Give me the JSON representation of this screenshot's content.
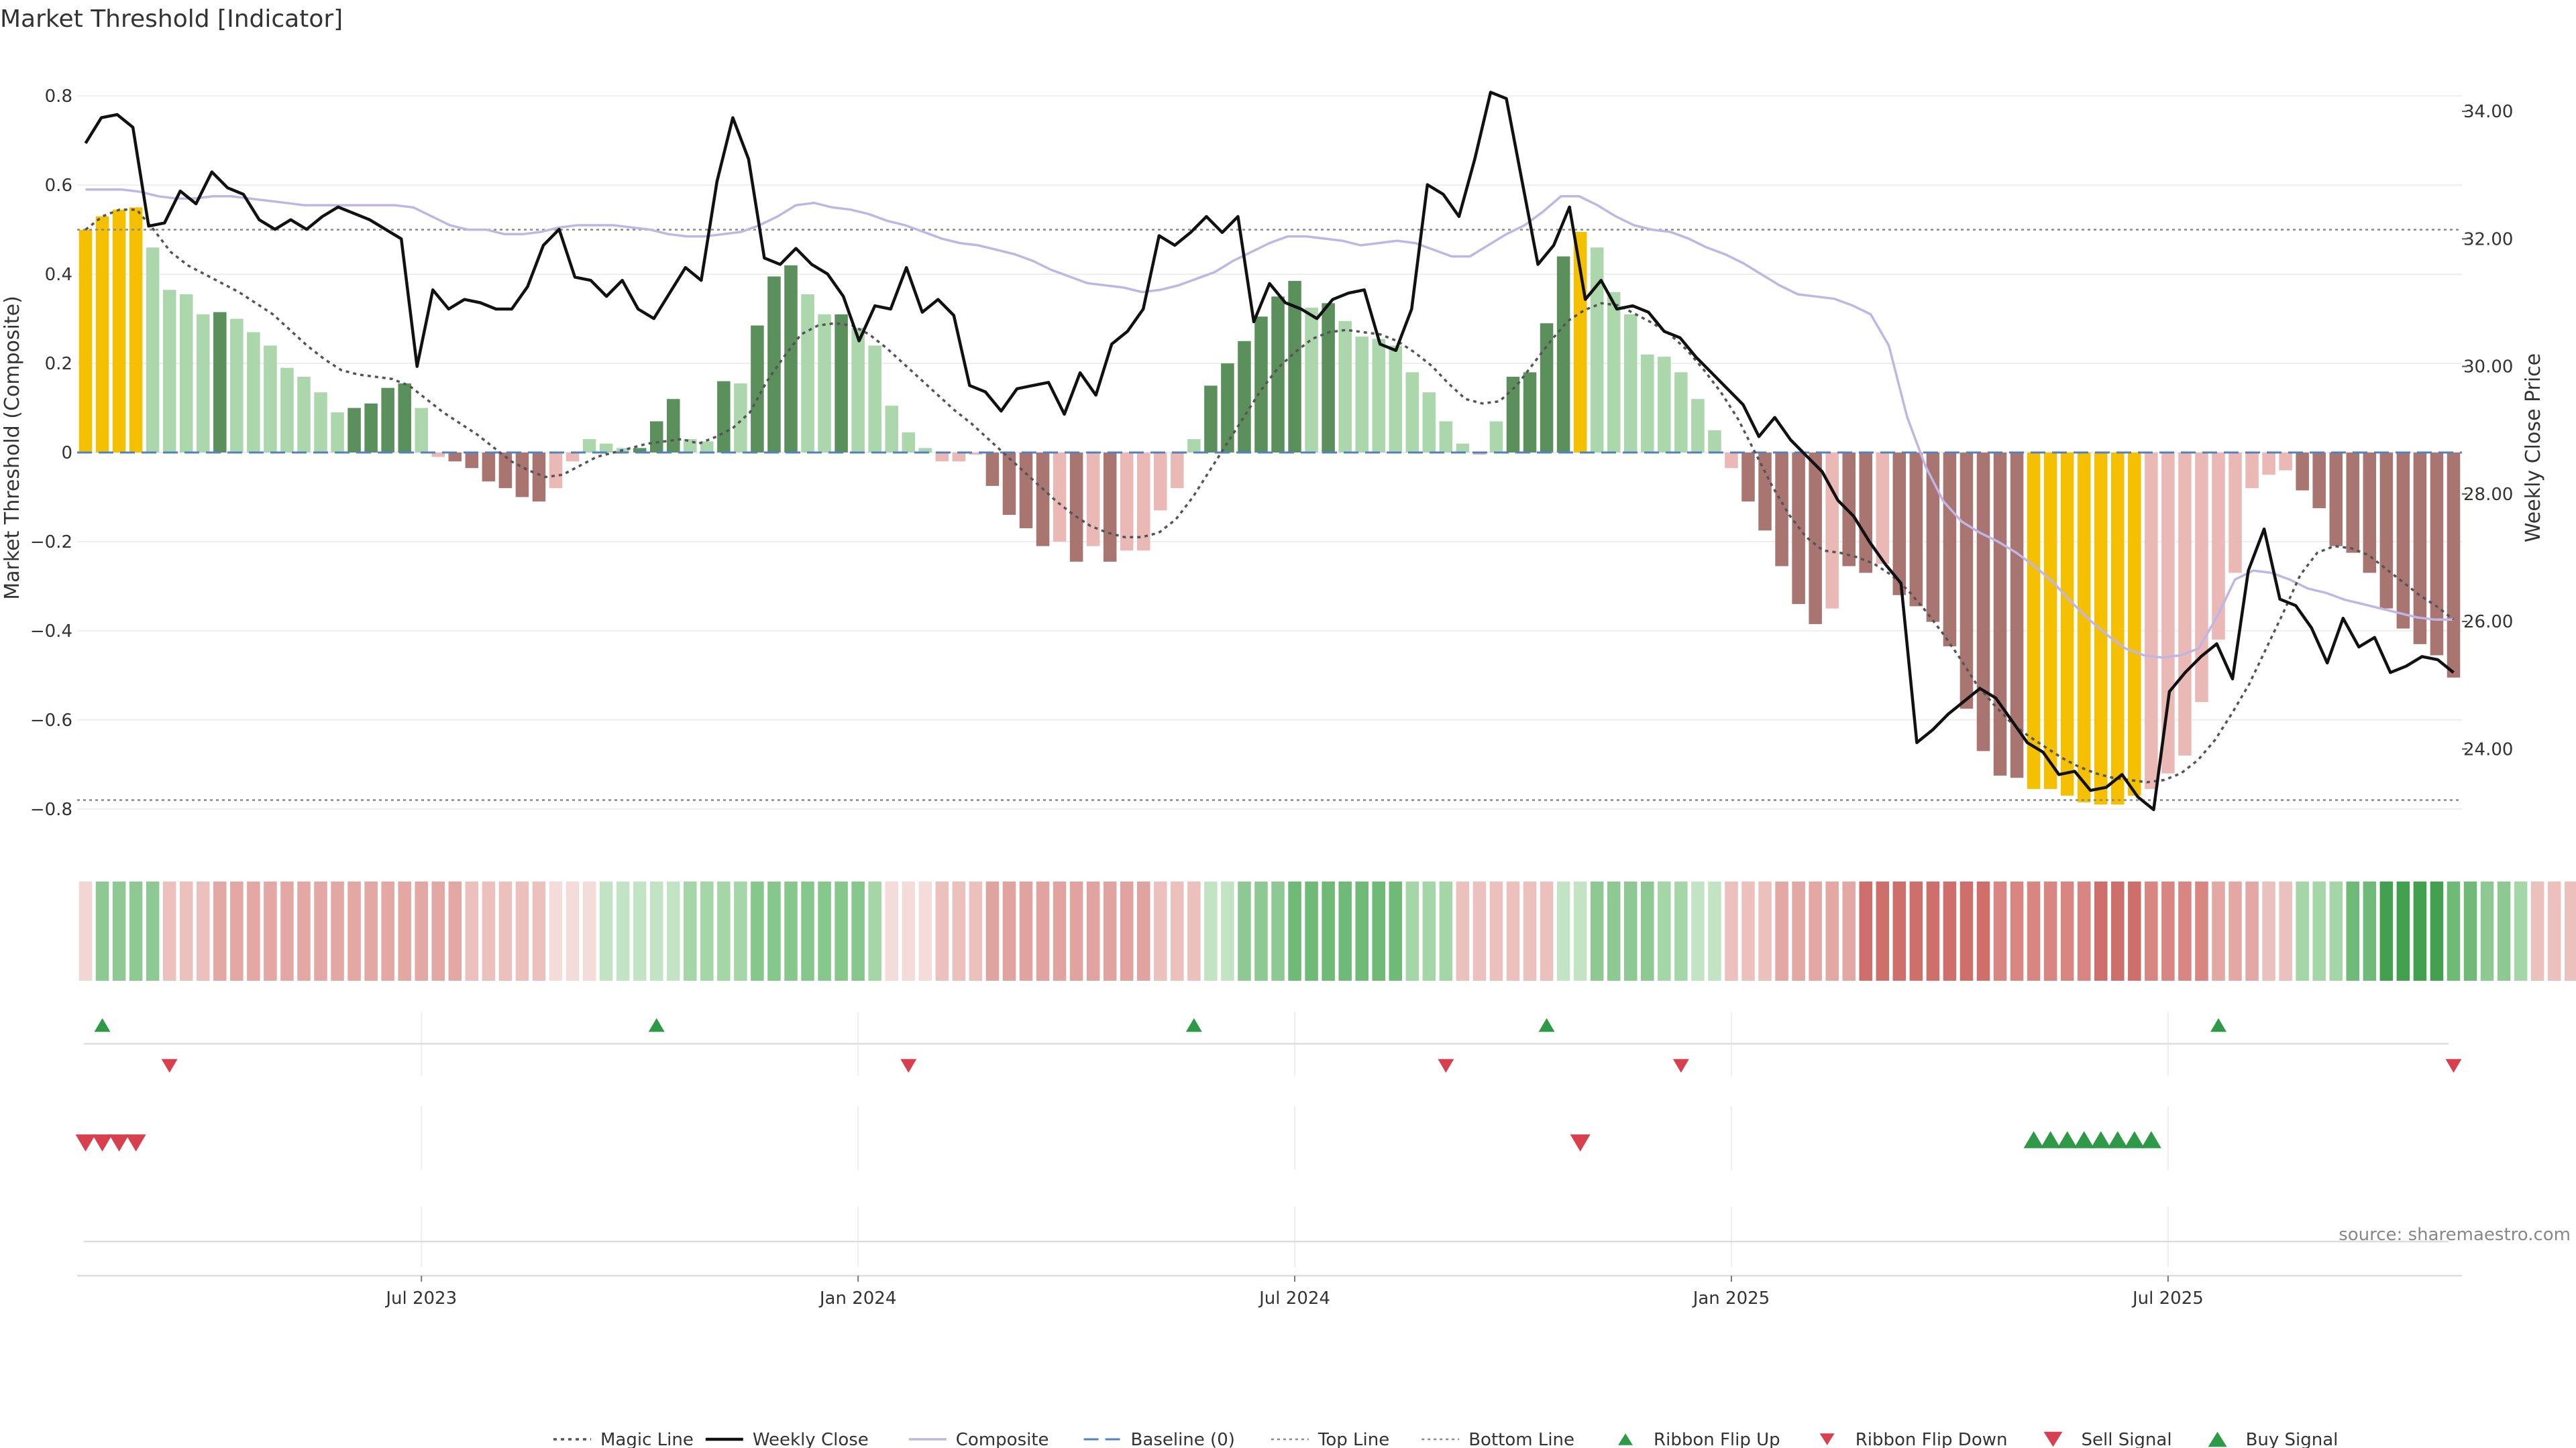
{
  "chart_data": {
    "type": "bar",
    "title": "Market Threshold [Indicator]",
    "ylabel": "Market Threshold (Composite)",
    "y2label": "Weekly Close Price",
    "ylim": [
      -0.88,
      0.88
    ],
    "y2lim": [
      22.5,
      34.8
    ],
    "yticks": [
      0.8,
      0.6,
      0.4,
      0.2,
      0,
      -0.2,
      -0.4,
      -0.6,
      -0.8
    ],
    "yticklabels": [
      "0.8",
      "0.6",
      "0.4",
      "0.2",
      "0",
      "−0.2",
      "−0.4",
      "−0.6",
      "−0.8"
    ],
    "y2ticks": [
      34,
      32,
      30,
      28,
      26,
      24
    ],
    "y2ticklabels": [
      "34.00",
      "32.00",
      "30.00",
      "28.00",
      "26.00",
      "24.00"
    ],
    "xticklabels": [
      "Jul 2023",
      "Jan 2024",
      "Jul 2024",
      "Jan 2025",
      "Jul 2025"
    ],
    "top_line": 0.5,
    "bottom_line": -0.78,
    "grid": true,
    "legend_placement": "bottom-center",
    "colors": {
      "highlight": "#f5c000",
      "pos_strong": "#5b8f5b",
      "pos_weak": "#acd6ac",
      "neg_strong": "#a97571",
      "neg_weak": "#eab9b6",
      "weekly_close": "#111111",
      "composite": "#c0b6e6",
      "magic": "#555555",
      "baseline": "#4f82c3",
      "buy": "#2e9a48",
      "sell": "#d84050"
    },
    "composite_bars": [
      {
        "v": 0.5,
        "c": "h"
      },
      {
        "v": 0.53,
        "c": "h"
      },
      {
        "v": 0.545,
        "c": "h"
      },
      {
        "v": 0.55,
        "c": "h"
      },
      {
        "v": 0.46,
        "c": "w"
      },
      {
        "v": 0.365,
        "c": "w"
      },
      {
        "v": 0.355,
        "c": "w"
      },
      {
        "v": 0.31,
        "c": "w"
      },
      {
        "v": 0.315,
        "c": "s"
      },
      {
        "v": 0.3,
        "c": "w"
      },
      {
        "v": 0.27,
        "c": "w"
      },
      {
        "v": 0.24,
        "c": "w"
      },
      {
        "v": 0.19,
        "c": "w"
      },
      {
        "v": 0.17,
        "c": "w"
      },
      {
        "v": 0.135,
        "c": "w"
      },
      {
        "v": 0.09,
        "c": "w"
      },
      {
        "v": 0.1,
        "c": "s"
      },
      {
        "v": 0.11,
        "c": "s"
      },
      {
        "v": 0.145,
        "c": "s"
      },
      {
        "v": 0.155,
        "c": "s"
      },
      {
        "v": 0.1,
        "c": "w"
      },
      {
        "v": -0.01,
        "c": "nw"
      },
      {
        "v": -0.02,
        "c": "ns"
      },
      {
        "v": -0.035,
        "c": "ns"
      },
      {
        "v": -0.065,
        "c": "ns"
      },
      {
        "v": -0.08,
        "c": "ns"
      },
      {
        "v": -0.1,
        "c": "ns"
      },
      {
        "v": -0.11,
        "c": "ns"
      },
      {
        "v": -0.08,
        "c": "nw"
      },
      {
        "v": -0.02,
        "c": "nw"
      },
      {
        "v": 0.03,
        "c": "w"
      },
      {
        "v": 0.02,
        "c": "w"
      },
      {
        "v": 0.01,
        "c": "w"
      },
      {
        "v": 0.01,
        "c": "s"
      },
      {
        "v": 0.07,
        "c": "s"
      },
      {
        "v": 0.12,
        "c": "s"
      },
      {
        "v": 0.03,
        "c": "w"
      },
      {
        "v": 0.025,
        "c": "w"
      },
      {
        "v": 0.16,
        "c": "s"
      },
      {
        "v": 0.155,
        "c": "w"
      },
      {
        "v": 0.285,
        "c": "s"
      },
      {
        "v": 0.395,
        "c": "s"
      },
      {
        "v": 0.42,
        "c": "s"
      },
      {
        "v": 0.355,
        "c": "w"
      },
      {
        "v": 0.31,
        "c": "w"
      },
      {
        "v": 0.31,
        "c": "s"
      },
      {
        "v": 0.28,
        "c": "w"
      },
      {
        "v": 0.24,
        "c": "w"
      },
      {
        "v": 0.105,
        "c": "w"
      },
      {
        "v": 0.045,
        "c": "w"
      },
      {
        "v": 0.01,
        "c": "w"
      },
      {
        "v": -0.02,
        "c": "nw"
      },
      {
        "v": -0.02,
        "c": "nw"
      },
      {
        "v": -0.005,
        "c": "nw"
      },
      {
        "v": -0.075,
        "c": "ns"
      },
      {
        "v": -0.14,
        "c": "ns"
      },
      {
        "v": -0.17,
        "c": "ns"
      },
      {
        "v": -0.21,
        "c": "ns"
      },
      {
        "v": -0.2,
        "c": "nw"
      },
      {
        "v": -0.245,
        "c": "ns"
      },
      {
        "v": -0.21,
        "c": "nw"
      },
      {
        "v": -0.245,
        "c": "ns"
      },
      {
        "v": -0.22,
        "c": "nw"
      },
      {
        "v": -0.22,
        "c": "nw"
      },
      {
        "v": -0.13,
        "c": "nw"
      },
      {
        "v": -0.08,
        "c": "nw"
      },
      {
        "v": 0.03,
        "c": "w"
      },
      {
        "v": 0.15,
        "c": "s"
      },
      {
        "v": 0.2,
        "c": "s"
      },
      {
        "v": 0.25,
        "c": "s"
      },
      {
        "v": 0.305,
        "c": "s"
      },
      {
        "v": 0.35,
        "c": "s"
      },
      {
        "v": 0.385,
        "c": "s"
      },
      {
        "v": 0.325,
        "c": "w"
      },
      {
        "v": 0.335,
        "c": "s"
      },
      {
        "v": 0.295,
        "c": "w"
      },
      {
        "v": 0.26,
        "c": "w"
      },
      {
        "v": 0.255,
        "c": "w"
      },
      {
        "v": 0.24,
        "c": "w"
      },
      {
        "v": 0.18,
        "c": "w"
      },
      {
        "v": 0.135,
        "c": "w"
      },
      {
        "v": 0.07,
        "c": "w"
      },
      {
        "v": 0.02,
        "c": "w"
      },
      {
        "v": -0.005,
        "c": "nw"
      },
      {
        "v": 0.07,
        "c": "w"
      },
      {
        "v": 0.17,
        "c": "s"
      },
      {
        "v": 0.18,
        "c": "s"
      },
      {
        "v": 0.29,
        "c": "s"
      },
      {
        "v": 0.44,
        "c": "s"
      },
      {
        "v": 0.495,
        "c": "h"
      },
      {
        "v": 0.46,
        "c": "w"
      },
      {
        "v": 0.36,
        "c": "w"
      },
      {
        "v": 0.31,
        "c": "w"
      },
      {
        "v": 0.22,
        "c": "w"
      },
      {
        "v": 0.215,
        "c": "w"
      },
      {
        "v": 0.18,
        "c": "w"
      },
      {
        "v": 0.12,
        "c": "w"
      },
      {
        "v": 0.05,
        "c": "w"
      },
      {
        "v": -0.035,
        "c": "nw"
      },
      {
        "v": -0.11,
        "c": "ns"
      },
      {
        "v": -0.175,
        "c": "ns"
      },
      {
        "v": -0.255,
        "c": "ns"
      },
      {
        "v": -0.34,
        "c": "ns"
      },
      {
        "v": -0.385,
        "c": "ns"
      },
      {
        "v": -0.35,
        "c": "nw"
      },
      {
        "v": -0.255,
        "c": "ns"
      },
      {
        "v": -0.27,
        "c": "ns"
      },
      {
        "v": -0.25,
        "c": "nw"
      },
      {
        "v": -0.32,
        "c": "ns"
      },
      {
        "v": -0.345,
        "c": "ns"
      },
      {
        "v": -0.38,
        "c": "ns"
      },
      {
        "v": -0.435,
        "c": "ns"
      },
      {
        "v": -0.575,
        "c": "ns"
      },
      {
        "v": -0.67,
        "c": "ns"
      },
      {
        "v": -0.725,
        "c": "ns"
      },
      {
        "v": -0.73,
        "c": "ns"
      },
      {
        "v": -0.755,
        "c": "h"
      },
      {
        "v": -0.755,
        "c": "h"
      },
      {
        "v": -0.77,
        "c": "h"
      },
      {
        "v": -0.785,
        "c": "h"
      },
      {
        "v": -0.79,
        "c": "h"
      },
      {
        "v": -0.79,
        "c": "h"
      },
      {
        "v": -0.77,
        "c": "h"
      },
      {
        "v": -0.755,
        "c": "nw"
      },
      {
        "v": -0.72,
        "c": "nw"
      },
      {
        "v": -0.68,
        "c": "nw"
      },
      {
        "v": -0.56,
        "c": "nw"
      },
      {
        "v": -0.42,
        "c": "nw"
      },
      {
        "v": -0.27,
        "c": "nw"
      },
      {
        "v": -0.08,
        "c": "nw"
      },
      {
        "v": -0.05,
        "c": "nw"
      },
      {
        "v": -0.04,
        "c": "nw"
      },
      {
        "v": -0.085,
        "c": "ns"
      },
      {
        "v": -0.125,
        "c": "ns"
      },
      {
        "v": -0.21,
        "c": "ns"
      },
      {
        "v": -0.225,
        "c": "ns"
      },
      {
        "v": -0.27,
        "c": "ns"
      },
      {
        "v": -0.35,
        "c": "ns"
      },
      {
        "v": -0.395,
        "c": "ns"
      },
      {
        "v": -0.43,
        "c": "ns"
      },
      {
        "v": -0.455,
        "c": "ns"
      },
      {
        "v": -0.505,
        "c": "ns"
      }
    ],
    "weekly_close": [
      33.5,
      33.9,
      33.95,
      33.75,
      32.2,
      32.25,
      32.75,
      32.55,
      33.05,
      32.8,
      32.7,
      32.3,
      32.15,
      32.3,
      32.15,
      32.35,
      32.5,
      32.4,
      32.3,
      32.15,
      32.0,
      30.0,
      31.2,
      30.9,
      31.05,
      31.0,
      30.9,
      30.9,
      31.25,
      31.9,
      32.15,
      31.4,
      31.35,
      31.1,
      31.35,
      30.9,
      30.75,
      31.15,
      31.55,
      31.35,
      32.9,
      33.9,
      33.25,
      31.7,
      31.6,
      31.85,
      31.6,
      31.45,
      31.1,
      30.4,
      30.95,
      30.9,
      31.55,
      30.85,
      31.05,
      30.8,
      29.7,
      29.6,
      29.3,
      29.65,
      29.7,
      29.75,
      29.25,
      29.9,
      29.55,
      30.35,
      30.55,
      30.9,
      32.05,
      31.9,
      32.1,
      32.35,
      32.1,
      32.35,
      30.7,
      31.3,
      31.0,
      30.9,
      30.75,
      31.05,
      31.15,
      31.2,
      30.35,
      30.25,
      30.9,
      32.85,
      32.7,
      32.35,
      33.25,
      34.3,
      34.2,
      32.9,
      31.6,
      31.9,
      32.5,
      31.05,
      31.35,
      30.9,
      30.95,
      30.85,
      30.55,
      30.45,
      30.15,
      29.9,
      29.65,
      29.4,
      28.9,
      29.2,
      28.85,
      28.6,
      28.35,
      27.9,
      27.65,
      27.25,
      26.9,
      26.6,
      24.1,
      24.3,
      24.55,
      24.75,
      24.95,
      24.8,
      24.45,
      24.1,
      23.95,
      23.6,
      23.65,
      23.35,
      23.4,
      23.6,
      23.25,
      23.05,
      24.9,
      25.2,
      25.45,
      25.65,
      25.1,
      26.8,
      27.45,
      26.35,
      26.25,
      25.9,
      25.35,
      26.05,
      25.6,
      25.75,
      25.2,
      25.3,
      25.45,
      25.4,
      25.2
    ],
    "magic_line": [
      0.5,
      0.53,
      0.545,
      0.545,
      0.5,
      0.45,
      0.42,
      0.4,
      0.38,
      0.36,
      0.335,
      0.31,
      0.275,
      0.24,
      0.21,
      0.185,
      0.175,
      0.17,
      0.165,
      0.15,
      0.12,
      0.09,
      0.065,
      0.04,
      0.01,
      -0.02,
      -0.04,
      -0.055,
      -0.05,
      -0.03,
      -0.01,
      0.0,
      0.01,
      0.02,
      0.025,
      0.03,
      0.02,
      0.035,
      0.055,
      0.09,
      0.16,
      0.215,
      0.265,
      0.285,
      0.29,
      0.285,
      0.265,
      0.235,
      0.2,
      0.165,
      0.13,
      0.095,
      0.065,
      0.03,
      -0.005,
      -0.04,
      -0.075,
      -0.11,
      -0.14,
      -0.165,
      -0.18,
      -0.19,
      -0.19,
      -0.18,
      -0.15,
      -0.1,
      -0.04,
      0.02,
      0.08,
      0.14,
      0.19,
      0.225,
      0.255,
      0.27,
      0.275,
      0.27,
      0.265,
      0.25,
      0.225,
      0.195,
      0.155,
      0.12,
      0.11,
      0.115,
      0.15,
      0.2,
      0.25,
      0.295,
      0.32,
      0.335,
      0.33,
      0.31,
      0.29,
      0.265,
      0.23,
      0.185,
      0.135,
      0.075,
      0.0,
      -0.075,
      -0.14,
      -0.19,
      -0.22,
      -0.225,
      -0.235,
      -0.25,
      -0.275,
      -0.31,
      -0.355,
      -0.405,
      -0.46,
      -0.52,
      -0.565,
      -0.605,
      -0.635,
      -0.66,
      -0.685,
      -0.705,
      -0.72,
      -0.73,
      -0.735,
      -0.74,
      -0.735,
      -0.72,
      -0.69,
      -0.645,
      -0.585,
      -0.52,
      -0.44,
      -0.36,
      -0.275,
      -0.225,
      -0.21,
      -0.215,
      -0.23,
      -0.26,
      -0.29,
      -0.32,
      -0.345,
      -0.375
    ],
    "composite_line": [
      0.59,
      0.59,
      0.59,
      0.585,
      0.575,
      0.57,
      0.57,
      0.575,
      0.575,
      0.57,
      0.565,
      0.56,
      0.555,
      0.555,
      0.555,
      0.555,
      0.555,
      0.555,
      0.55,
      0.53,
      0.51,
      0.5,
      0.5,
      0.49,
      0.49,
      0.495,
      0.505,
      0.51,
      0.51,
      0.51,
      0.505,
      0.5,
      0.49,
      0.485,
      0.485,
      0.49,
      0.495,
      0.51,
      0.53,
      0.555,
      0.56,
      0.55,
      0.545,
      0.535,
      0.52,
      0.51,
      0.495,
      0.48,
      0.47,
      0.465,
      0.455,
      0.445,
      0.43,
      0.41,
      0.395,
      0.38,
      0.375,
      0.37,
      0.36,
      0.365,
      0.375,
      0.39,
      0.405,
      0.43,
      0.45,
      0.47,
      0.485,
      0.485,
      0.48,
      0.475,
      0.465,
      0.47,
      0.475,
      0.47,
      0.455,
      0.44,
      0.44,
      0.465,
      0.49,
      0.51,
      0.54,
      0.575,
      0.575,
      0.555,
      0.53,
      0.51,
      0.5,
      0.495,
      0.48,
      0.46,
      0.445,
      0.425,
      0.4,
      0.375,
      0.355,
      0.35,
      0.345,
      0.33,
      0.31,
      0.24,
      0.08,
      -0.03,
      -0.11,
      -0.155,
      -0.18,
      -0.2,
      -0.225,
      -0.255,
      -0.29,
      -0.335,
      -0.375,
      -0.41,
      -0.44,
      -0.455,
      -0.46,
      -0.455,
      -0.44,
      -0.37,
      -0.285,
      -0.265,
      -0.27,
      -0.285,
      -0.305,
      -0.315,
      -0.33,
      -0.34,
      -0.35,
      -0.36,
      -0.37,
      -0.375,
      -0.375
    ],
    "ribbon": [
      {
        "c": "#f1d6d4",
        "n": 1
      },
      {
        "c": "#8ec993",
        "n": 4
      },
      {
        "c": "#ecc1bd",
        "n": 3
      },
      {
        "c": "#e3a7a4",
        "n": 15
      },
      {
        "c": "#ecc1bd",
        "n": 5
      },
      {
        "c": "#f4dcda",
        "n": 3
      },
      {
        "c": "#c2e4c4",
        "n": 5
      },
      {
        "c": "#a4d6a7",
        "n": 4
      },
      {
        "c": "#86c88b",
        "n": 7
      },
      {
        "c": "#a4d6a7",
        "n": 1
      },
      {
        "c": "#f4dcda",
        "n": 3
      },
      {
        "c": "#ecc1bd",
        "n": 3
      },
      {
        "c": "#e0a39f",
        "n": 10
      },
      {
        "c": "#ecc1bd",
        "n": 3
      },
      {
        "c": "#c2e4c4",
        "n": 2
      },
      {
        "c": "#8ec993",
        "n": 3
      },
      {
        "c": "#6fba76",
        "n": 7
      },
      {
        "c": "#a4d6a7",
        "n": 3
      },
      {
        "c": "#ecc1bd",
        "n": 6
      },
      {
        "c": "#c2e4c4",
        "n": 2
      },
      {
        "c": "#8ec993",
        "n": 4
      },
      {
        "c": "#a4d6a7",
        "n": 2
      },
      {
        "c": "#c2e4c4",
        "n": 2
      },
      {
        "c": "#ecc1bd",
        "n": 3
      },
      {
        "c": "#e3a7a4",
        "n": 5
      },
      {
        "c": "#cf6f6b",
        "n": 8
      },
      {
        "c": "#d98581",
        "n": 6
      },
      {
        "c": "#cf6f6b",
        "n": 3
      },
      {
        "c": "#d98581",
        "n": 4
      },
      {
        "c": "#e3a7a4",
        "n": 3
      },
      {
        "c": "#eac1bf",
        "n": 2
      },
      {
        "c": "#a4d6a7",
        "n": 3
      },
      {
        "c": "#6fba76",
        "n": 2
      },
      {
        "c": "#43a04f",
        "n": 4
      },
      {
        "c": "#6fba76",
        "n": 2
      },
      {
        "c": "#8ec993",
        "n": 2
      },
      {
        "c": "#a4d6a7",
        "n": 1
      },
      {
        "c": "#ecc1bd",
        "n": 3
      }
    ],
    "ribbon_flip_up": [
      1,
      34,
      66,
      87,
      127
    ],
    "ribbon_flip_down": [
      5,
      49,
      81,
      95,
      141
    ],
    "sell_signal": [
      0,
      1,
      2,
      3,
      89
    ],
    "buy_signal": [
      116,
      117,
      118,
      119,
      120,
      121,
      122,
      123
    ],
    "x_tick_positions": [
      20,
      46,
      72,
      98,
      124
    ],
    "legend": [
      "Magic Line",
      "Weekly Close",
      "Composite",
      "Baseline (0)",
      "Top Line",
      "Bottom Line",
      "Ribbon Flip Up",
      "Ribbon Flip Down",
      "Sell Signal",
      "Buy Signal"
    ],
    "source": "source: sharemaestro.com"
  }
}
